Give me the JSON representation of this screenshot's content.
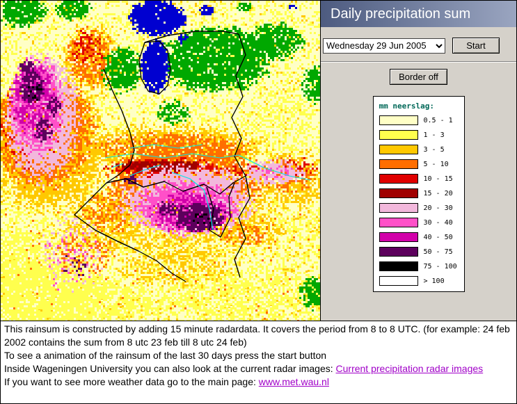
{
  "theme": {
    "panel_bg": "#D5D1CA",
    "header_left": "#4D5B80",
    "header_right": "#9AA5C0",
    "link": "#A000C8",
    "legend_title": "#006858",
    "footer_bg": "#FFFFFF"
  },
  "header": {
    "title": "Daily precipitation sum"
  },
  "controls": {
    "date_selected": "Wednesday 29 Jun 2005",
    "start_label": "Start",
    "border_label": "Border off"
  },
  "legend": {
    "title": "mm neerslag:",
    "entries": [
      {
        "label": "0.5 - 1",
        "color": "#FFFFC6"
      },
      {
        "label": "1 - 3",
        "color": "#FFFF4E"
      },
      {
        "label": "3 - 5",
        "color": "#FFC800"
      },
      {
        "label": "5 - 10",
        "color": "#FF6E00"
      },
      {
        "label": "10 - 15",
        "color": "#E00000"
      },
      {
        "label": "15 - 20",
        "color": "#A00000"
      },
      {
        "label": "20 - 30",
        "color": "#F2B8DC"
      },
      {
        "label": "30 - 40",
        "color": "#FF50C8"
      },
      {
        "label": "40 - 50",
        "color": "#D200AA"
      },
      {
        "label": "50 - 75",
        "color": "#5C005C"
      },
      {
        "label": "75 - 100",
        "color": "#000000"
      },
      {
        "label": "> 100",
        "color": "#FFFFFF"
      }
    ]
  },
  "map": {
    "colors": {
      "green": "#00A800",
      "water": "#0000D0",
      "river": "#00E8E8",
      "border": "#000000",
      "background": "#FFFFC6"
    }
  },
  "footer": {
    "line1": "This rainsum is constructed by adding 15 minute radardata. It covers the period from 8 to 8 UTC. (for example: 24 feb 2002 contains the sum from 8 utc 23 feb till 8 utc 24 feb)",
    "line2": "To see a animation of the rainsum of the last 30 days press the start button",
    "line3_prefix": "Inside Wageningen University you can also look at the current radar images: ",
    "line3_link": "Current precipitation radar images",
    "line4_prefix": "If you want to see more weather data go to the main page: ",
    "line4_link": "www.met.wau.nl"
  }
}
